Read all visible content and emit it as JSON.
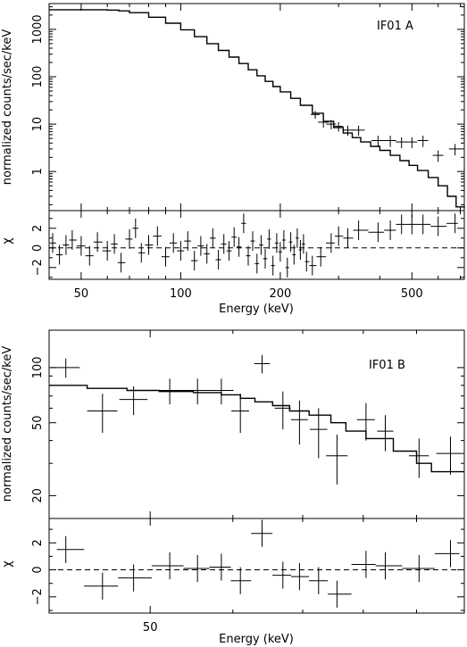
{
  "chart_data": [
    {
      "type": "line",
      "title": "",
      "annotation": "IF01 A",
      "xlabel": "Energy (keV)",
      "ylabel": "normalized counts/sec/keV",
      "xscale": "log",
      "yscale": "log",
      "xlim": [
        40,
        720
      ],
      "ylim": [
        0.15,
        3500
      ],
      "xticks": [
        50,
        100,
        200,
        500
      ],
      "xtick_labels": [
        "50",
        "100",
        "200",
        "500"
      ],
      "yticks": [
        1,
        10,
        100,
        1000
      ],
      "ytick_labels": [
        "1",
        "10",
        "100",
        "1000"
      ],
      "model": {
        "x": [
          40,
          45,
          50,
          55,
          60,
          65,
          70,
          80,
          90,
          100,
          110,
          120,
          130,
          140,
          150,
          160,
          170,
          180,
          190,
          200,
          215,
          230,
          250,
          270,
          290,
          310,
          330,
          350,
          375,
          400,
          430,
          460,
          490,
          520,
          560,
          600,
          640,
          680,
          720
        ],
        "y": [
          2600,
          2600,
          2600,
          2600,
          2550,
          2450,
          2250,
          1800,
          1350,
          980,
          700,
          500,
          360,
          260,
          190,
          140,
          105,
          80,
          62,
          48,
          35,
          25,
          17,
          11.5,
          8.5,
          6.5,
          5.2,
          4.2,
          3.4,
          2.8,
          2.2,
          1.7,
          1.35,
          1.05,
          0.75,
          0.5,
          0.3,
          0.18,
          0.17
        ]
      },
      "data": [
        {
          "x": 255,
          "y": 16,
          "xerr": 8,
          "yerr": 3
        },
        {
          "x": 270,
          "y": 11,
          "xerr": 10,
          "yerr": 2.5
        },
        {
          "x": 285,
          "y": 10,
          "xerr": 10,
          "yerr": 2.2
        },
        {
          "x": 300,
          "y": 9,
          "xerr": 10,
          "yerr": 2
        },
        {
          "x": 320,
          "y": 7.5,
          "xerr": 12,
          "yerr": 1.8
        },
        {
          "x": 345,
          "y": 7.5,
          "xerr": 15,
          "yerr": 1.8
        },
        {
          "x": 395,
          "y": 4.5,
          "xerr": 18,
          "yerr": 1.2
        },
        {
          "x": 430,
          "y": 4.5,
          "xerr": 18,
          "yerr": 1.2
        },
        {
          "x": 465,
          "y": 4.2,
          "xerr": 18,
          "yerr": 1.1
        },
        {
          "x": 500,
          "y": 4.2,
          "xerr": 18,
          "yerr": 1.1
        },
        {
          "x": 540,
          "y": 4.5,
          "xerr": 20,
          "yerr": 1.2
        },
        {
          "x": 600,
          "y": 2.2,
          "xerr": 22,
          "yerr": 0.6
        },
        {
          "x": 675,
          "y": 3,
          "xerr": 28,
          "yerr": 0.8
        }
      ],
      "residuals": {
        "ylabel": "χ",
        "ylim": [
          -3.2,
          3.8
        ],
        "yticks": [
          -2,
          0,
          2
        ],
        "ytick_labels": [
          "−2",
          "0",
          "2"
        ],
        "points": [
          {
            "x": 41,
            "y": 0.5
          },
          {
            "x": 43,
            "y": -0.7
          },
          {
            "x": 45,
            "y": 0.3
          },
          {
            "x": 47,
            "y": 0.8
          },
          {
            "x": 50,
            "y": 0.2
          },
          {
            "x": 53,
            "y": -0.8
          },
          {
            "x": 56,
            "y": 0.6
          },
          {
            "x": 60,
            "y": -0.3
          },
          {
            "x": 63,
            "y": 0.4
          },
          {
            "x": 66,
            "y": -1.5
          },
          {
            "x": 70,
            "y": 0.9
          },
          {
            "x": 73,
            "y": 2.0
          },
          {
            "x": 76,
            "y": -0.5
          },
          {
            "x": 80,
            "y": 0.3
          },
          {
            "x": 85,
            "y": 1.2
          },
          {
            "x": 90,
            "y": -0.9
          },
          {
            "x": 95,
            "y": 0.5
          },
          {
            "x": 100,
            "y": -0.3
          },
          {
            "x": 105,
            "y": 0.7
          },
          {
            "x": 110,
            "y": -1.3
          },
          {
            "x": 115,
            "y": 0.2
          },
          {
            "x": 120,
            "y": -0.6
          },
          {
            "x": 125,
            "y": 1.0
          },
          {
            "x": 130,
            "y": -1.2
          },
          {
            "x": 135,
            "y": 0.4
          },
          {
            "x": 140,
            "y": -0.3
          },
          {
            "x": 145,
            "y": 1.1
          },
          {
            "x": 150,
            "y": 0.1
          },
          {
            "x": 155,
            "y": 2.5
          },
          {
            "x": 160,
            "y": -0.8
          },
          {
            "x": 165,
            "y": 0.7
          },
          {
            "x": 170,
            "y": -1.6
          },
          {
            "x": 175,
            "y": 0.3
          },
          {
            "x": 180,
            "y": -1.1
          },
          {
            "x": 185,
            "y": 0.9
          },
          {
            "x": 190,
            "y": -1.8
          },
          {
            "x": 195,
            "y": 0.5
          },
          {
            "x": 200,
            "y": -0.4
          },
          {
            "x": 205,
            "y": 0.8
          },
          {
            "x": 210,
            "y": -2.0
          },
          {
            "x": 215,
            "y": 0.6
          },
          {
            "x": 220,
            "y": -0.7
          },
          {
            "x": 225,
            "y": 1.0
          },
          {
            "x": 230,
            "y": -0.2
          },
          {
            "x": 235,
            "y": 0.4
          },
          {
            "x": 240,
            "y": -1.4
          },
          {
            "x": 250,
            "y": -1.8
          },
          {
            "x": 265,
            "y": -0.9
          },
          {
            "x": 285,
            "y": 0.5
          },
          {
            "x": 300,
            "y": 1.2
          },
          {
            "x": 320,
            "y": 1.0
          },
          {
            "x": 345,
            "y": 1.8
          },
          {
            "x": 395,
            "y": 1.6
          },
          {
            "x": 430,
            "y": 1.8
          },
          {
            "x": 465,
            "y": 2.4
          },
          {
            "x": 500,
            "y": 2.4
          },
          {
            "x": 540,
            "y": 2.4
          },
          {
            "x": 600,
            "y": 2.2
          },
          {
            "x": 675,
            "y": 2.5
          }
        ]
      }
    },
    {
      "type": "line",
      "title": "",
      "annotation": "IF01 B",
      "xlabel": "Energy (keV)",
      "ylabel": "normalized counts/sec/keV",
      "xscale": "log",
      "yscale": "log",
      "xlim": [
        40,
        100
      ],
      "ylim": [
        15,
        160
      ],
      "xticks": [
        50
      ],
      "xtick_labels": [
        "50"
      ],
      "yticks": [
        20,
        50,
        100
      ],
      "ytick_labels": [
        "20",
        "50",
        "100"
      ],
      "model": {
        "steps": [
          {
            "x0": 40,
            "x1": 43.5,
            "y": 80
          },
          {
            "x0": 43.5,
            "x1": 47.5,
            "y": 77
          },
          {
            "x0": 47.5,
            "x1": 51,
            "y": 75
          },
          {
            "x0": 51,
            "x1": 55,
            "y": 74
          },
          {
            "x0": 55,
            "x1": 58.5,
            "y": 73
          },
          {
            "x0": 58.5,
            "x1": 61,
            "y": 71
          },
          {
            "x0": 61,
            "x1": 63,
            "y": 68
          },
          {
            "x0": 63,
            "x1": 65.5,
            "y": 65
          },
          {
            "x0": 65.5,
            "x1": 68,
            "y": 62
          },
          {
            "x0": 68,
            "x1": 71,
            "y": 58
          },
          {
            "x0": 71,
            "x1": 74.5,
            "y": 55
          },
          {
            "x0": 74.5,
            "x1": 77,
            "y": 50
          },
          {
            "x0": 77,
            "x1": 80.5,
            "y": 45
          },
          {
            "x0": 80.5,
            "x1": 85.5,
            "y": 41
          },
          {
            "x0": 85.5,
            "x1": 90,
            "y": 35
          },
          {
            "x0": 90,
            "x1": 93,
            "y": 30
          },
          {
            "x0": 93,
            "x1": 100,
            "y": 27
          }
        ]
      },
      "data": [
        {
          "x": 41.5,
          "y": 100,
          "xerr": 1.3,
          "yerr": 12
        },
        {
          "x": 45.0,
          "y": 58,
          "xerr": 1.5,
          "yerr": 14
        },
        {
          "x": 48.2,
          "y": 67,
          "xerr": 1.5,
          "yerr": 12
        },
        {
          "x": 52.2,
          "y": 75,
          "xerr": 1.8,
          "yerr": 12
        },
        {
          "x": 55.5,
          "y": 75,
          "xerr": 1.7,
          "yerr": 12
        },
        {
          "x": 58.5,
          "y": 75,
          "xerr": 1.6,
          "yerr": 12
        },
        {
          "x": 61.0,
          "y": 58,
          "xerr": 1.2,
          "yerr": 14
        },
        {
          "x": 64.0,
          "y": 105,
          "xerr": 1.1,
          "yerr": 12
        },
        {
          "x": 67.0,
          "y": 60,
          "xerr": 1.2,
          "yerr": 14
        },
        {
          "x": 69.5,
          "y": 52,
          "xerr": 1.3,
          "yerr": 14
        },
        {
          "x": 72.5,
          "y": 46,
          "xerr": 1.4,
          "yerr": 14
        },
        {
          "x": 75.5,
          "y": 33,
          "xerr": 1.8,
          "yerr": 10
        },
        {
          "x": 80.5,
          "y": 52,
          "xerr": 1.6,
          "yerr": 12
        },
        {
          "x": 84.0,
          "y": 45,
          "xerr": 1.5,
          "yerr": 10
        },
        {
          "x": 90.5,
          "y": 33,
          "xerr": 2.0,
          "yerr": 8
        },
        {
          "x": 97.0,
          "y": 34,
          "xerr": 3.0,
          "yerr": 8
        }
      ],
      "residuals": {
        "ylabel": "χ",
        "ylim": [
          -3.2,
          3.8
        ],
        "yticks": [
          -2,
          0,
          2
        ],
        "ytick_labels": [
          "−2",
          "0",
          "2"
        ],
        "points": [
          {
            "x": 41.5,
            "y": 1.5
          },
          {
            "x": 45.0,
            "y": -1.2
          },
          {
            "x": 48.2,
            "y": -0.6
          },
          {
            "x": 52.2,
            "y": 0.3
          },
          {
            "x": 55.5,
            "y": 0.1
          },
          {
            "x": 58.5,
            "y": 0.2
          },
          {
            "x": 61.0,
            "y": -0.8
          },
          {
            "x": 64.0,
            "y": 2.7
          },
          {
            "x": 67.0,
            "y": -0.4
          },
          {
            "x": 69.5,
            "y": -0.5
          },
          {
            "x": 72.5,
            "y": -0.8
          },
          {
            "x": 75.5,
            "y": -1.8
          },
          {
            "x": 80.5,
            "y": 0.4
          },
          {
            "x": 84.0,
            "y": 0.3
          },
          {
            "x": 90.5,
            "y": 0.1
          },
          {
            "x": 97.0,
            "y": 1.2
          }
        ]
      }
    }
  ]
}
